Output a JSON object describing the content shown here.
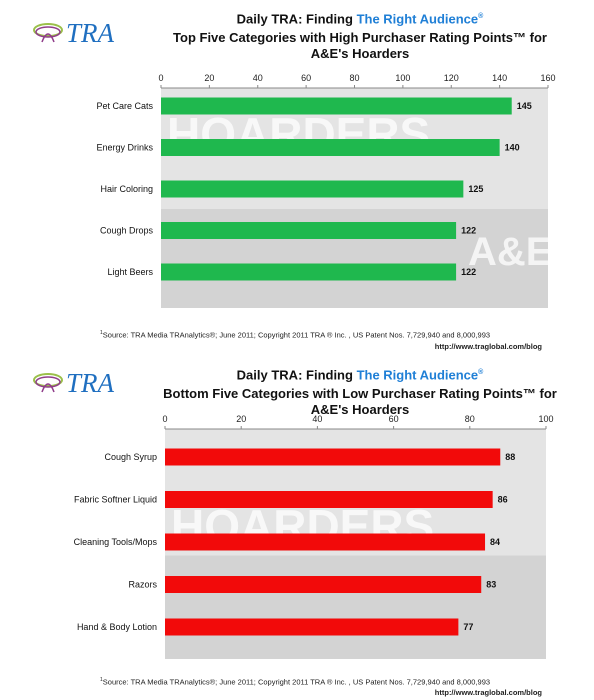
{
  "header": {
    "prefix": "Daily TRA: Finding ",
    "accent": "The Right Audience",
    "registered": "®"
  },
  "logo_text": "TRA",
  "colors": {
    "accent": "#1f7fd6",
    "top_bars": "#1fb84e",
    "bottom_bars": "#f20a0a"
  },
  "source_text": "Source:  TRA Media TRAnalytics®; June 2011; Copyright 2011 TRA ® Inc. , US Patent Nos. 7,729,940 and 8,000,993",
  "source_footnote": "1",
  "url": "http://www.traglobal.com/blog",
  "chart_data": [
    {
      "type": "bar",
      "orientation": "horizontal",
      "title_line1": "Top Five Categories with High Purchaser Rating Points™ for",
      "title_line2": "A&E's Hoarders",
      "categories": [
        "Pet Care Cats",
        "Energy Drinks",
        "Hair Coloring",
        "Cough Drops",
        "Light Beers"
      ],
      "values": [
        145,
        140,
        125,
        122,
        122
      ],
      "xlim": [
        0,
        160
      ],
      "ticks": [
        "0",
        "20",
        "40",
        "60",
        "80",
        "100",
        "120",
        "140",
        "160"
      ],
      "axis_position": "top",
      "grid": false,
      "bar_color": "#1fb84e",
      "background_words": [
        "HOARDERS",
        "A&E"
      ]
    },
    {
      "type": "bar",
      "orientation": "horizontal",
      "title_line1": "Bottom Five Categories with Low Purchaser Rating Points™ for",
      "title_line2": "A&E's Hoarders",
      "categories": [
        "Cough Syrup",
        "Fabric Softner Liquid",
        "Cleaning Tools/Mops",
        "Razors",
        "Hand & Body Lotion"
      ],
      "values": [
        88,
        86,
        84,
        83,
        77
      ],
      "xlim": [
        0,
        100
      ],
      "ticks": [
        "0",
        "20",
        "40",
        "60",
        "80",
        "100"
      ],
      "axis_position": "top",
      "grid": false,
      "bar_color": "#f20a0a",
      "background_words": [
        "HOARDERS"
      ]
    }
  ]
}
